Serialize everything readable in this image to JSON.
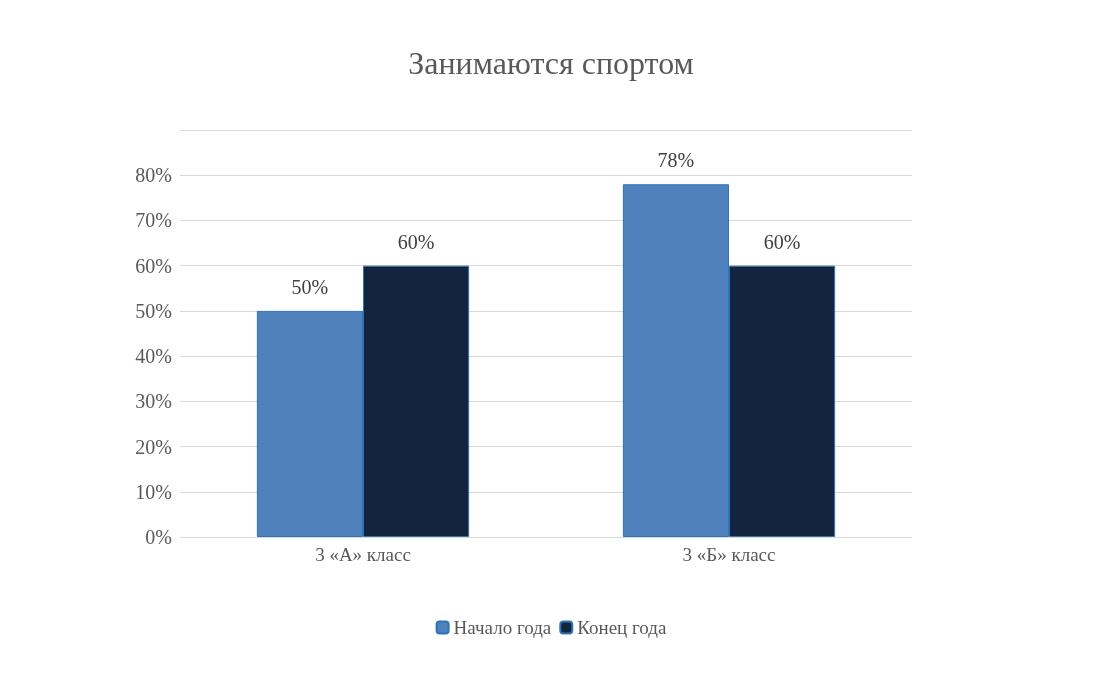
{
  "chart_data": {
    "type": "bar",
    "title": "Занимаются спортом",
    "categories": [
      "3 «А» класс",
      "3 «Б» класс"
    ],
    "series": [
      {
        "name": "Начало года",
        "color": "#4f81bd",
        "values": [
          50,
          78
        ],
        "value_labels": [
          "50%",
          "78%"
        ]
      },
      {
        "name": "Конец года",
        "color": "#14243f",
        "values": [
          60,
          60
        ],
        "value_labels": [
          "60%",
          "60%"
        ]
      }
    ],
    "ylim": [
      0,
      90
    ],
    "yticks": [
      {
        "value": 0,
        "label": "0%"
      },
      {
        "value": 10,
        "label": "10%"
      },
      {
        "value": 20,
        "label": "20%"
      },
      {
        "value": 30,
        "label": "30%"
      },
      {
        "value": 40,
        "label": "40%"
      },
      {
        "value": 50,
        "label": "50%"
      },
      {
        "value": 60,
        "label": "60%"
      },
      {
        "value": 70,
        "label": "70%"
      },
      {
        "value": 80,
        "label": "80%"
      },
      {
        "value": 90,
        "label": null
      }
    ],
    "grid": "y",
    "legend": "bottom"
  }
}
